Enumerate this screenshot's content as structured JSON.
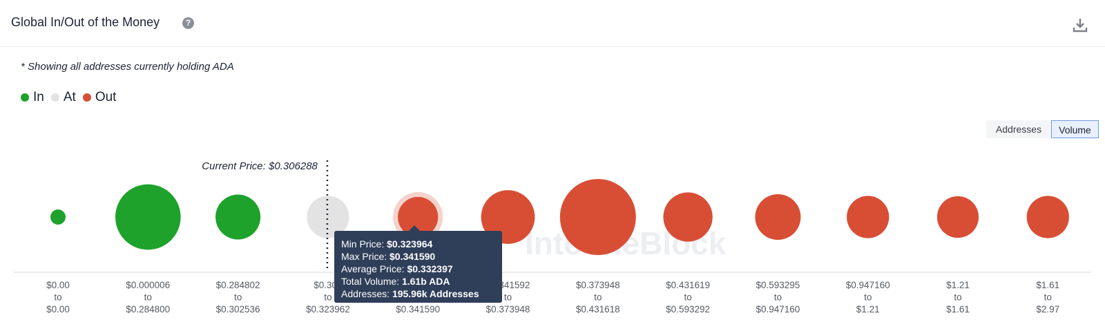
{
  "header": {
    "title": "Global In/Out of the Money",
    "help_icon": "question-circle-icon",
    "download_icon": "download-icon"
  },
  "note": "* Showing all addresses currently holding ADA",
  "legend": [
    {
      "label": "In",
      "color": "#1ea22b"
    },
    {
      "label": "At",
      "color": "#e3e3e3"
    },
    {
      "label": "Out",
      "color": "#d84e35"
    }
  ],
  "toggles": {
    "addresses": "Addresses",
    "volume": "Volume",
    "active": "Volume"
  },
  "watermark": "IntoTheBlock",
  "chart_data": {
    "type": "scatter",
    "title": "",
    "current_price_label": "Current Price: $0.306288",
    "current_price": 0.306288,
    "categories": [
      {
        "from": "$0.00",
        "to": "$0.00",
        "status": "In",
        "relative_volume": 0.04
      },
      {
        "from": "$0.000006",
        "to": "$0.284800",
        "status": "In",
        "relative_volume": 0.74
      },
      {
        "from": "$0.284802",
        "to": "$0.302536",
        "status": "In",
        "relative_volume": 0.35
      },
      {
        "from": "$0.302",
        "to": "$0.323962",
        "status": "At",
        "relative_volume": 0.31
      },
      {
        "from": "$0.323964",
        "to": "$0.341590",
        "status": "Out",
        "relative_volume": 0.28
      },
      {
        "from": "$0.341592",
        "to": "$0.373948",
        "status": "Out",
        "relative_volume": 0.5
      },
      {
        "from": "$0.373948",
        "to": "$0.431618",
        "status": "Out",
        "relative_volume": 1.0
      },
      {
        "from": "$0.431619",
        "to": "$0.593292",
        "status": "Out",
        "relative_volume": 0.42
      },
      {
        "from": "$0.593295",
        "to": "$0.947160",
        "status": "Out",
        "relative_volume": 0.36
      },
      {
        "from": "$0.947160",
        "to": "$1.21",
        "status": "Out",
        "relative_volume": 0.31
      },
      {
        "from": "$1.21",
        "to": "$1.61",
        "status": "Out",
        "relative_volume": 0.3
      },
      {
        "from": "$1.61",
        "to": "$2.97",
        "status": "Out",
        "relative_volume": 0.31
      }
    ],
    "tick_connector": "to",
    "highlighted_index": 4,
    "tooltip": {
      "min_price_label": "Min Price:",
      "min_price": "$0.323964",
      "max_price_label": "Max Price:",
      "max_price": "$0.341590",
      "avg_price_label": "Average Price:",
      "avg_price": "$0.332397",
      "total_volume_label": "Total Volume:",
      "total_volume": "1.61b ADA",
      "addresses_label": "Addresses:",
      "addresses": "195.96k Addresses"
    }
  }
}
